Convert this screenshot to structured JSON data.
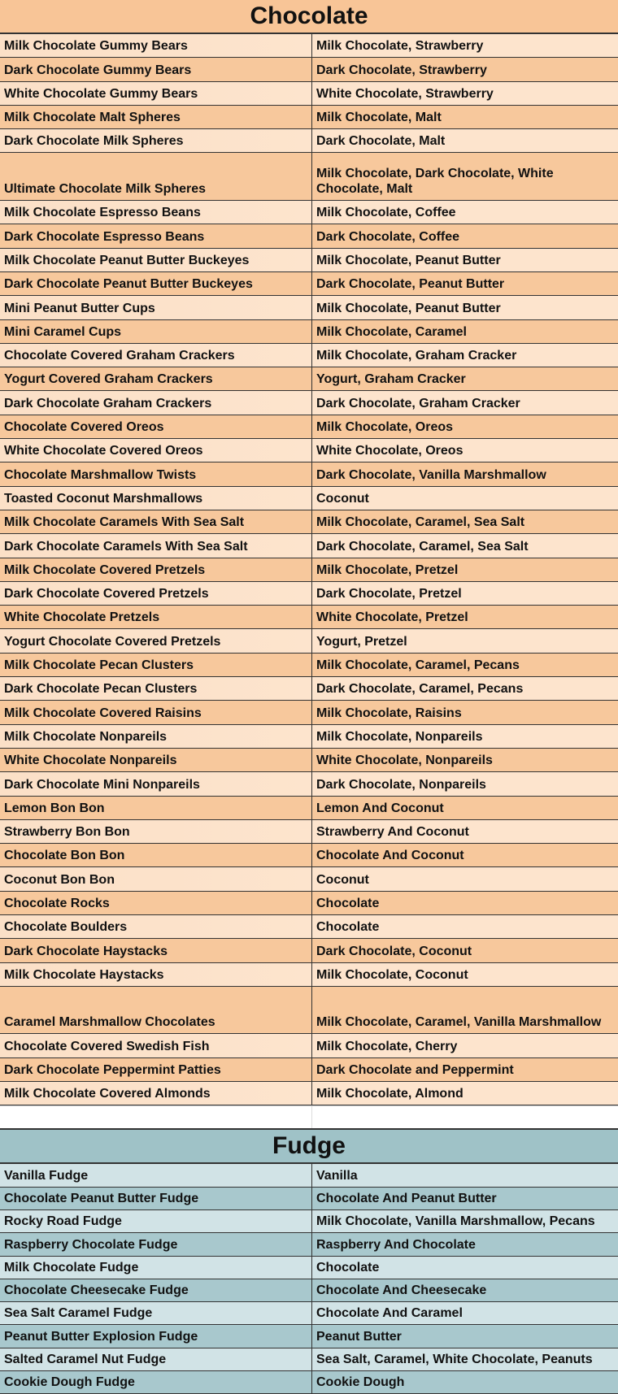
{
  "chocolate": {
    "title": "Chocolate",
    "rows": [
      {
        "name": "Milk Chocolate Gummy Bears",
        "flavors": "Milk Chocolate, Strawberry"
      },
      {
        "name": "Dark Chocolate Gummy Bears",
        "flavors": "Dark Chocolate, Strawberry"
      },
      {
        "name": "White Chocolate Gummy Bears",
        "flavors": "White Chocolate, Strawberry"
      },
      {
        "name": "Milk Chocolate Malt Spheres",
        "flavors": "Milk Chocolate, Malt"
      },
      {
        "name": "Dark Chocolate Milk Spheres",
        "flavors": "Dark Chocolate, Malt"
      },
      {
        "name": "Ultimate Chocolate Milk Spheres",
        "flavors": "Milk Chocolate, Dark Chocolate, White Chocolate, Malt",
        "double": true
      },
      {
        "name": "Milk Chocolate Espresso Beans",
        "flavors": "Milk Chocolate, Coffee"
      },
      {
        "name": "Dark Chocolate Espresso Beans",
        "flavors": "Dark Chocolate, Coffee"
      },
      {
        "name": "Milk Chocolate Peanut Butter Buckeyes",
        "flavors": "Milk Chocolate, Peanut Butter"
      },
      {
        "name": "Dark Chocolate Peanut Butter Buckeyes",
        "flavors": "Dark Chocolate, Peanut Butter"
      },
      {
        "name": "Mini Peanut Butter Cups",
        "flavors": "Milk Chocolate, Peanut Butter"
      },
      {
        "name": "Mini Caramel Cups",
        "flavors": "Milk Chocolate, Caramel"
      },
      {
        "name": "Chocolate Covered Graham Crackers",
        "flavors": "Milk Chocolate, Graham Cracker"
      },
      {
        "name": "Yogurt Covered Graham Crackers",
        "flavors": "Yogurt, Graham Cracker"
      },
      {
        "name": "Dark Chocolate Graham Crackers",
        "flavors": "Dark Chocolate, Graham Cracker"
      },
      {
        "name": "Chocolate Covered Oreos",
        "flavors": "Milk Chocolate, Oreos"
      },
      {
        "name": "White Chocolate Covered Oreos",
        "flavors": "White Chocolate, Oreos"
      },
      {
        "name": "Chocolate Marshmallow Twists",
        "flavors": "Dark Chocolate, Vanilla Marshmallow"
      },
      {
        "name": "Toasted Coconut Marshmallows",
        "flavors": "Coconut"
      },
      {
        "name": "Milk Chocolate Caramels With Sea Salt",
        "flavors": "Milk Chocolate, Caramel, Sea Salt"
      },
      {
        "name": "Dark Chocolate Caramels With Sea Salt",
        "flavors": "Dark Chocolate, Caramel, Sea Salt"
      },
      {
        "name": "Milk Chocolate Covered Pretzels",
        "flavors": "Milk Chocolate, Pretzel"
      },
      {
        "name": "Dark Chocolate Covered Pretzels",
        "flavors": "Dark Chocolate, Pretzel"
      },
      {
        "name": "White Chocolate Pretzels",
        "flavors": "White Chocolate, Pretzel"
      },
      {
        "name": "Yogurt Chocolate Covered Pretzels",
        "flavors": "Yogurt, Pretzel"
      },
      {
        "name": "Milk Chocolate Pecan Clusters",
        "flavors": "Milk Chocolate, Caramel, Pecans"
      },
      {
        "name": "Dark Chocolate Pecan Clusters",
        "flavors": "Dark Chocolate, Caramel, Pecans"
      },
      {
        "name": "Milk Chocolate Covered Raisins",
        "flavors": "Milk Chocolate, Raisins"
      },
      {
        "name": "Milk Chocolate Nonpareils",
        "flavors": "Milk Chocolate, Nonpareils"
      },
      {
        "name": "White Chocolate Nonpareils",
        "flavors": "White Chocolate, Nonpareils"
      },
      {
        "name": "Dark Chocolate Mini Nonpareils",
        "flavors": "Dark Chocolate, Nonpareils"
      },
      {
        "name": "Lemon Bon Bon",
        "flavors": "Lemon And Coconut"
      },
      {
        "name": "Strawberry Bon Bon",
        "flavors": "Strawberry And Coconut"
      },
      {
        "name": "Chocolate Bon Bon",
        "flavors": "Chocolate And Coconut"
      },
      {
        "name": "Coconut Bon Bon",
        "flavors": "Coconut"
      },
      {
        "name": "Chocolate Rocks",
        "flavors": "Chocolate"
      },
      {
        "name": "Chocolate Boulders",
        "flavors": "Chocolate"
      },
      {
        "name": "Dark Chocolate Haystacks",
        "flavors": "Dark Chocolate, Coconut"
      },
      {
        "name": "Milk Chocolate Haystacks",
        "flavors": "Milk Chocolate, Coconut"
      },
      {
        "name": "Caramel Marshmallow Chocolates",
        "flavors": "Milk Chocolate, Caramel, Vanilla Marshmallow",
        "double": true
      },
      {
        "name": "Chocolate Covered Swedish Fish",
        "flavors": "Milk Chocolate, Cherry"
      },
      {
        "name": "Dark Chocolate Peppermint Patties",
        "flavors": "Dark Chocolate and Peppermint"
      },
      {
        "name": "Milk Chocolate Covered Almonds",
        "flavors": "Milk Chocolate, Almond"
      }
    ]
  },
  "fudge": {
    "title": "Fudge",
    "rows": [
      {
        "name": "Vanilla Fudge",
        "flavors": "Vanilla"
      },
      {
        "name": "Chocolate Peanut Butter Fudge",
        "flavors": "Chocolate And Peanut Butter"
      },
      {
        "name": "Rocky Road Fudge",
        "flavors": "Milk Chocolate, Vanilla Marshmallow, Pecans"
      },
      {
        "name": "Raspberry Chocolate Fudge",
        "flavors": "Raspberry And Chocolate"
      },
      {
        "name": "Milk Chocolate Fudge",
        "flavors": "Chocolate"
      },
      {
        "name": "Chocolate Cheesecake Fudge",
        "flavors": "Chocolate And Cheesecake"
      },
      {
        "name": "Sea Salt Caramel Fudge",
        "flavors": "Chocolate And Caramel"
      },
      {
        "name": "Peanut Butter Explosion Fudge",
        "flavors": "Peanut Butter"
      },
      {
        "name": "Salted Caramel Nut Fudge",
        "flavors": "Sea Salt, Caramel, White Chocolate, Peanuts"
      },
      {
        "name": "Cookie Dough Fudge",
        "flavors": "Cookie Dough"
      }
    ]
  },
  "colors": {
    "chocolate_header": "#f8c597",
    "chocolate_light": "#fde4cd",
    "chocolate_dark": "#f7c89c",
    "fudge_header": "#9fc2c7",
    "fudge_light": "#d1e3e6",
    "fudge_dark": "#a8c8cd"
  }
}
